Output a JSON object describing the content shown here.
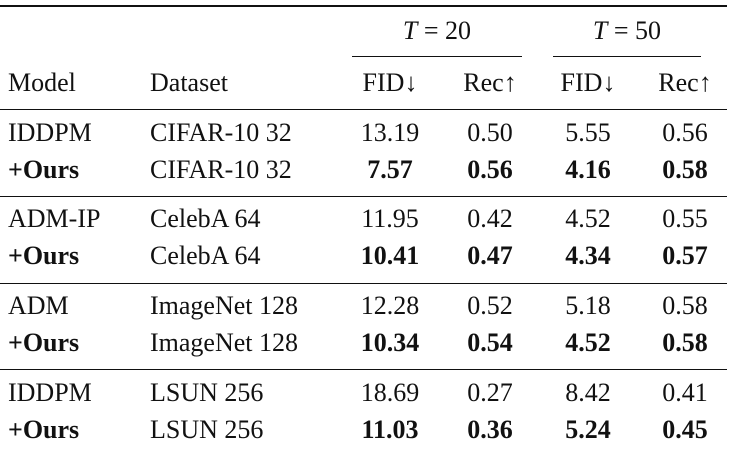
{
  "groups": [
    {
      "symbol": "T",
      "value": " = 20"
    },
    {
      "symbol": "T",
      "value": " = 50"
    }
  ],
  "columns": [
    "Model",
    "Dataset",
    "FID↓",
    "Rec↑",
    "FID↓",
    "Rec↑"
  ],
  "rows": [
    {
      "model": "IDDPM",
      "dataset": "CIFAR-10 32",
      "fid20": "13.19",
      "rec20": "0.50",
      "fid50": "5.55",
      "rec50": "0.56"
    },
    {
      "model": "+Ours",
      "dataset": "CIFAR-10 32",
      "fid20": "7.57",
      "rec20": "0.56",
      "fid50": "4.16",
      "rec50": "0.58"
    },
    {
      "model": "ADM-IP",
      "dataset": "CelebA 64",
      "fid20": "11.95",
      "rec20": "0.42",
      "fid50": "4.52",
      "rec50": "0.55"
    },
    {
      "model": "+Ours",
      "dataset": "CelebA 64",
      "fid20": "10.41",
      "rec20": "0.47",
      "fid50": "4.34",
      "rec50": "0.57"
    },
    {
      "model": "ADM",
      "dataset": "ImageNet 128",
      "fid20": "12.28",
      "rec20": "0.52",
      "fid50": "5.18",
      "rec50": "0.58"
    },
    {
      "model": "+Ours",
      "dataset": "ImageNet 128",
      "fid20": "10.34",
      "rec20": "0.54",
      "fid50": "4.52",
      "rec50": "0.58"
    },
    {
      "model": "IDDPM",
      "dataset": "LSUN 256",
      "fid20": "18.69",
      "rec20": "0.27",
      "fid50": "8.42",
      "rec50": "0.41"
    },
    {
      "model": "+Ours",
      "dataset": "LSUN 256",
      "fid20": "11.03",
      "rec20": "0.36",
      "fid50": "5.24",
      "rec50": "0.45"
    }
  ]
}
